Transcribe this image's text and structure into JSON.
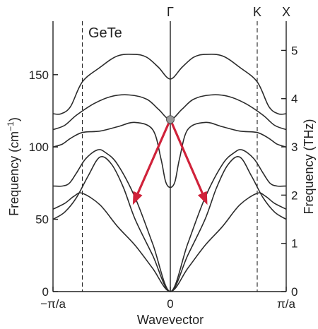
{
  "chart_data": {
    "type": "line",
    "label": "GeTe",
    "xlabel": "Wavevector",
    "ylabel_left": "Frequency (cm",
    "ylabel_left_sup": "−1",
    "ylabel_left_end": ")",
    "ylabel_right": "Frequency (THz)",
    "x_ticks": [
      {
        "x": -1,
        "label": "−π/a"
      },
      {
        "x": 0,
        "label": "0"
      },
      {
        "x": 1,
        "label": "π/a"
      }
    ],
    "top_labels": [
      {
        "x": 0,
        "label": "Γ"
      },
      {
        "x": 0.75,
        "label": "K"
      },
      {
        "x": 1,
        "label": "X"
      }
    ],
    "k_point_x": 0.75,
    "xlim": [
      -1,
      1
    ],
    "ylim_left": [
      0,
      187
    ],
    "y_ticks_left": [
      0,
      50,
      100,
      150
    ],
    "y_ticks_right_thz": [
      0,
      1,
      2,
      3,
      4,
      5
    ],
    "thz_per_cm": 0.029979,
    "series": [
      {
        "x": [
          -1,
          -0.9,
          -0.82,
          -0.75,
          -0.6,
          -0.45,
          -0.3,
          -0.15,
          0,
          0.15,
          0.3,
          0.45,
          0.6,
          0.75,
          0.82,
          0.9,
          1
        ],
        "y": [
          57,
          61,
          66,
          68,
          60,
          45,
          32,
          16,
          0,
          16,
          32,
          45,
          60,
          68,
          66,
          61,
          57
        ]
      },
      {
        "x": [
          -1,
          -0.9,
          -0.8,
          -0.7,
          -0.6,
          -0.5,
          -0.4,
          -0.3,
          -0.15,
          0,
          0.15,
          0.3,
          0.4,
          0.5,
          0.6,
          0.7,
          0.8,
          0.9,
          1
        ],
        "y": [
          50,
          55,
          65,
          80,
          93,
          88,
          72,
          50,
          25,
          0,
          25,
          50,
          72,
          88,
          93,
          80,
          65,
          55,
          50
        ]
      },
      {
        "x": [
          -1,
          -0.92,
          -0.86,
          -0.8,
          -0.72,
          -0.62,
          -0.55,
          -0.45,
          -0.3,
          -0.15,
          0,
          0.15,
          0.3,
          0.45,
          0.55,
          0.62,
          0.72,
          0.8,
          0.86,
          0.92,
          1
        ],
        "y": [
          73,
          73,
          75,
          82,
          92,
          98,
          96,
          88,
          65,
          33,
          0,
          33,
          65,
          88,
          96,
          98,
          92,
          82,
          75,
          73,
          73
        ]
      },
      {
        "x": [
          -1,
          -0.92,
          -0.85,
          -0.75,
          -0.6,
          -0.45,
          -0.3,
          -0.15,
          -0.08,
          -0.04,
          0,
          0.04,
          0.08,
          0.15,
          0.3,
          0.45,
          0.6,
          0.75,
          0.85,
          0.92,
          1
        ],
        "y": [
          100,
          102,
          106,
          110,
          111,
          114,
          117,
          112,
          92,
          76,
          72,
          76,
          92,
          112,
          117,
          114,
          111,
          110,
          106,
          102,
          100
        ]
      },
      {
        "x": [
          -1,
          -0.9,
          -0.8,
          -0.65,
          -0.5,
          -0.35,
          -0.2,
          -0.1,
          0,
          0.1,
          0.2,
          0.35,
          0.5,
          0.65,
          0.8,
          0.9,
          1
        ],
        "y": [
          112,
          115,
          122,
          130,
          135,
          136,
          133,
          126,
          119,
          126,
          133,
          136,
          135,
          130,
          122,
          115,
          112
        ]
      },
      {
        "x": [
          -1,
          -0.93,
          -0.85,
          -0.75,
          -0.6,
          -0.45,
          -0.3,
          -0.2,
          -0.1,
          0,
          0.1,
          0.2,
          0.3,
          0.45,
          0.6,
          0.75,
          0.85,
          0.93,
          1
        ],
        "y": [
          123,
          123,
          128,
          145,
          155,
          163,
          164,
          162,
          155,
          147,
          155,
          162,
          164,
          163,
          155,
          145,
          128,
          123,
          123
        ]
      }
    ],
    "gamma_point": {
      "x": 0,
      "y": 119
    },
    "arrows": [
      {
        "from": [
          0,
          119
        ],
        "to": [
          -0.32,
          60
        ]
      },
      {
        "from": [
          0,
          119
        ],
        "to": [
          0.32,
          60
        ]
      }
    ],
    "colors": {
      "curve": "#2b2b2b",
      "arrow": "#d0223a",
      "gamma_dot_fill": "#9a9a9a",
      "axis": "#222222"
    }
  }
}
